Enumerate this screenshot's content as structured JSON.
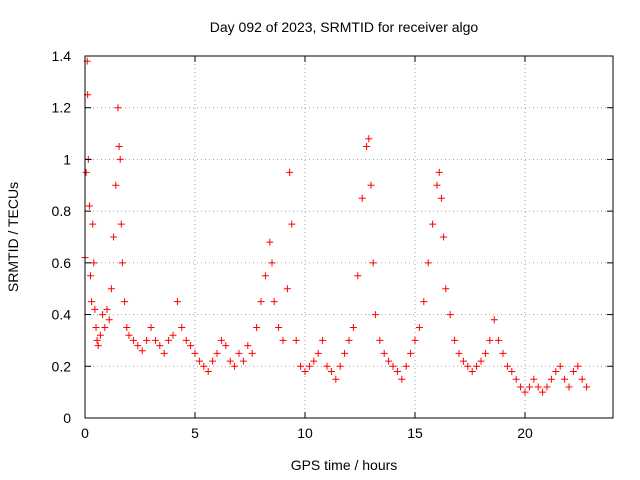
{
  "chart_data": {
    "type": "scatter",
    "title": "Day 092 of 2023, SRMTID for receiver algo",
    "xlabel": "GPS time / hours",
    "ylabel": "SRMTID / TECUs",
    "xlim": [
      0,
      24
    ],
    "ylim": [
      0,
      1.4
    ],
    "grid": true,
    "marker": "+",
    "marker_color": "#ff0000",
    "xticks": [
      0,
      5,
      10,
      15,
      20
    ],
    "xtick_labels": [
      "0",
      "5",
      "10",
      "15",
      "20"
    ],
    "yticks": [
      0,
      0.2,
      0.4,
      0.6,
      0.8,
      1.0,
      1.2,
      1.4
    ],
    "ytick_labels": [
      "0",
      "0.2",
      "0.4",
      "0.6",
      "0.8",
      "1",
      "1.2",
      "1.4"
    ],
    "series": [
      {
        "name": "SRMTID",
        "x": [
          0.0,
          0.05,
          0.1,
          0.12,
          0.15,
          0.2,
          0.25,
          0.3,
          0.35,
          0.4,
          0.45,
          0.5,
          0.55,
          0.6,
          0.7,
          0.8,
          0.9,
          1.0,
          1.1,
          1.2,
          1.3,
          1.4,
          1.5,
          1.55,
          1.6,
          1.65,
          1.7,
          1.8,
          1.9,
          2.0,
          2.2,
          2.4,
          2.6,
          2.8,
          3.0,
          3.2,
          3.4,
          3.6,
          3.8,
          4.0,
          4.2,
          4.4,
          4.6,
          4.8,
          5.0,
          5.2,
          5.4,
          5.6,
          5.8,
          6.0,
          6.2,
          6.4,
          6.6,
          6.8,
          7.0,
          7.2,
          7.4,
          7.6,
          7.8,
          8.0,
          8.2,
          8.4,
          8.5,
          8.6,
          8.8,
          9.0,
          9.2,
          9.3,
          9.4,
          9.6,
          9.8,
          10.0,
          10.2,
          10.4,
          10.6,
          10.8,
          11.0,
          11.2,
          11.4,
          11.6,
          11.8,
          12.0,
          12.2,
          12.4,
          12.6,
          12.8,
          12.9,
          13.0,
          13.1,
          13.2,
          13.4,
          13.6,
          13.8,
          14.0,
          14.2,
          14.4,
          14.6,
          14.8,
          15.0,
          15.2,
          15.4,
          15.6,
          15.8,
          16.0,
          16.1,
          16.2,
          16.3,
          16.4,
          16.6,
          16.8,
          17.0,
          17.2,
          17.4,
          17.6,
          17.8,
          18.0,
          18.2,
          18.4,
          18.6,
          18.8,
          19.0,
          19.2,
          19.4,
          19.6,
          19.8,
          20.0,
          20.2,
          20.4,
          20.6,
          20.8,
          21.0,
          21.2,
          21.4,
          21.6,
          21.8,
          22.0,
          22.2,
          22.4,
          22.6,
          22.8
        ],
        "y": [
          0.62,
          0.95,
          1.38,
          1.25,
          1.0,
          0.82,
          0.55,
          0.45,
          0.75,
          0.6,
          0.42,
          0.35,
          0.3,
          0.28,
          0.32,
          0.4,
          0.35,
          0.42,
          0.38,
          0.5,
          0.7,
          0.9,
          1.2,
          1.05,
          1.0,
          0.75,
          0.6,
          0.45,
          0.35,
          0.32,
          0.3,
          0.28,
          0.26,
          0.3,
          0.35,
          0.3,
          0.28,
          0.25,
          0.3,
          0.32,
          0.45,
          0.35,
          0.3,
          0.28,
          0.25,
          0.22,
          0.2,
          0.18,
          0.22,
          0.25,
          0.3,
          0.28,
          0.22,
          0.2,
          0.25,
          0.22,
          0.28,
          0.25,
          0.35,
          0.45,
          0.55,
          0.68,
          0.6,
          0.45,
          0.35,
          0.3,
          0.5,
          0.95,
          0.75,
          0.3,
          0.2,
          0.18,
          0.2,
          0.22,
          0.25,
          0.3,
          0.2,
          0.18,
          0.15,
          0.2,
          0.25,
          0.3,
          0.35,
          0.55,
          0.85,
          1.05,
          1.08,
          0.9,
          0.6,
          0.4,
          0.3,
          0.25,
          0.22,
          0.2,
          0.18,
          0.15,
          0.2,
          0.25,
          0.3,
          0.35,
          0.45,
          0.6,
          0.75,
          0.9,
          0.95,
          0.85,
          0.7,
          0.5,
          0.4,
          0.3,
          0.25,
          0.22,
          0.2,
          0.18,
          0.2,
          0.22,
          0.25,
          0.3,
          0.38,
          0.3,
          0.25,
          0.2,
          0.18,
          0.15,
          0.12,
          0.1,
          0.12,
          0.15,
          0.12,
          0.1,
          0.12,
          0.15,
          0.18,
          0.2,
          0.15,
          0.12,
          0.18,
          0.2,
          0.15,
          0.12
        ]
      }
    ]
  }
}
